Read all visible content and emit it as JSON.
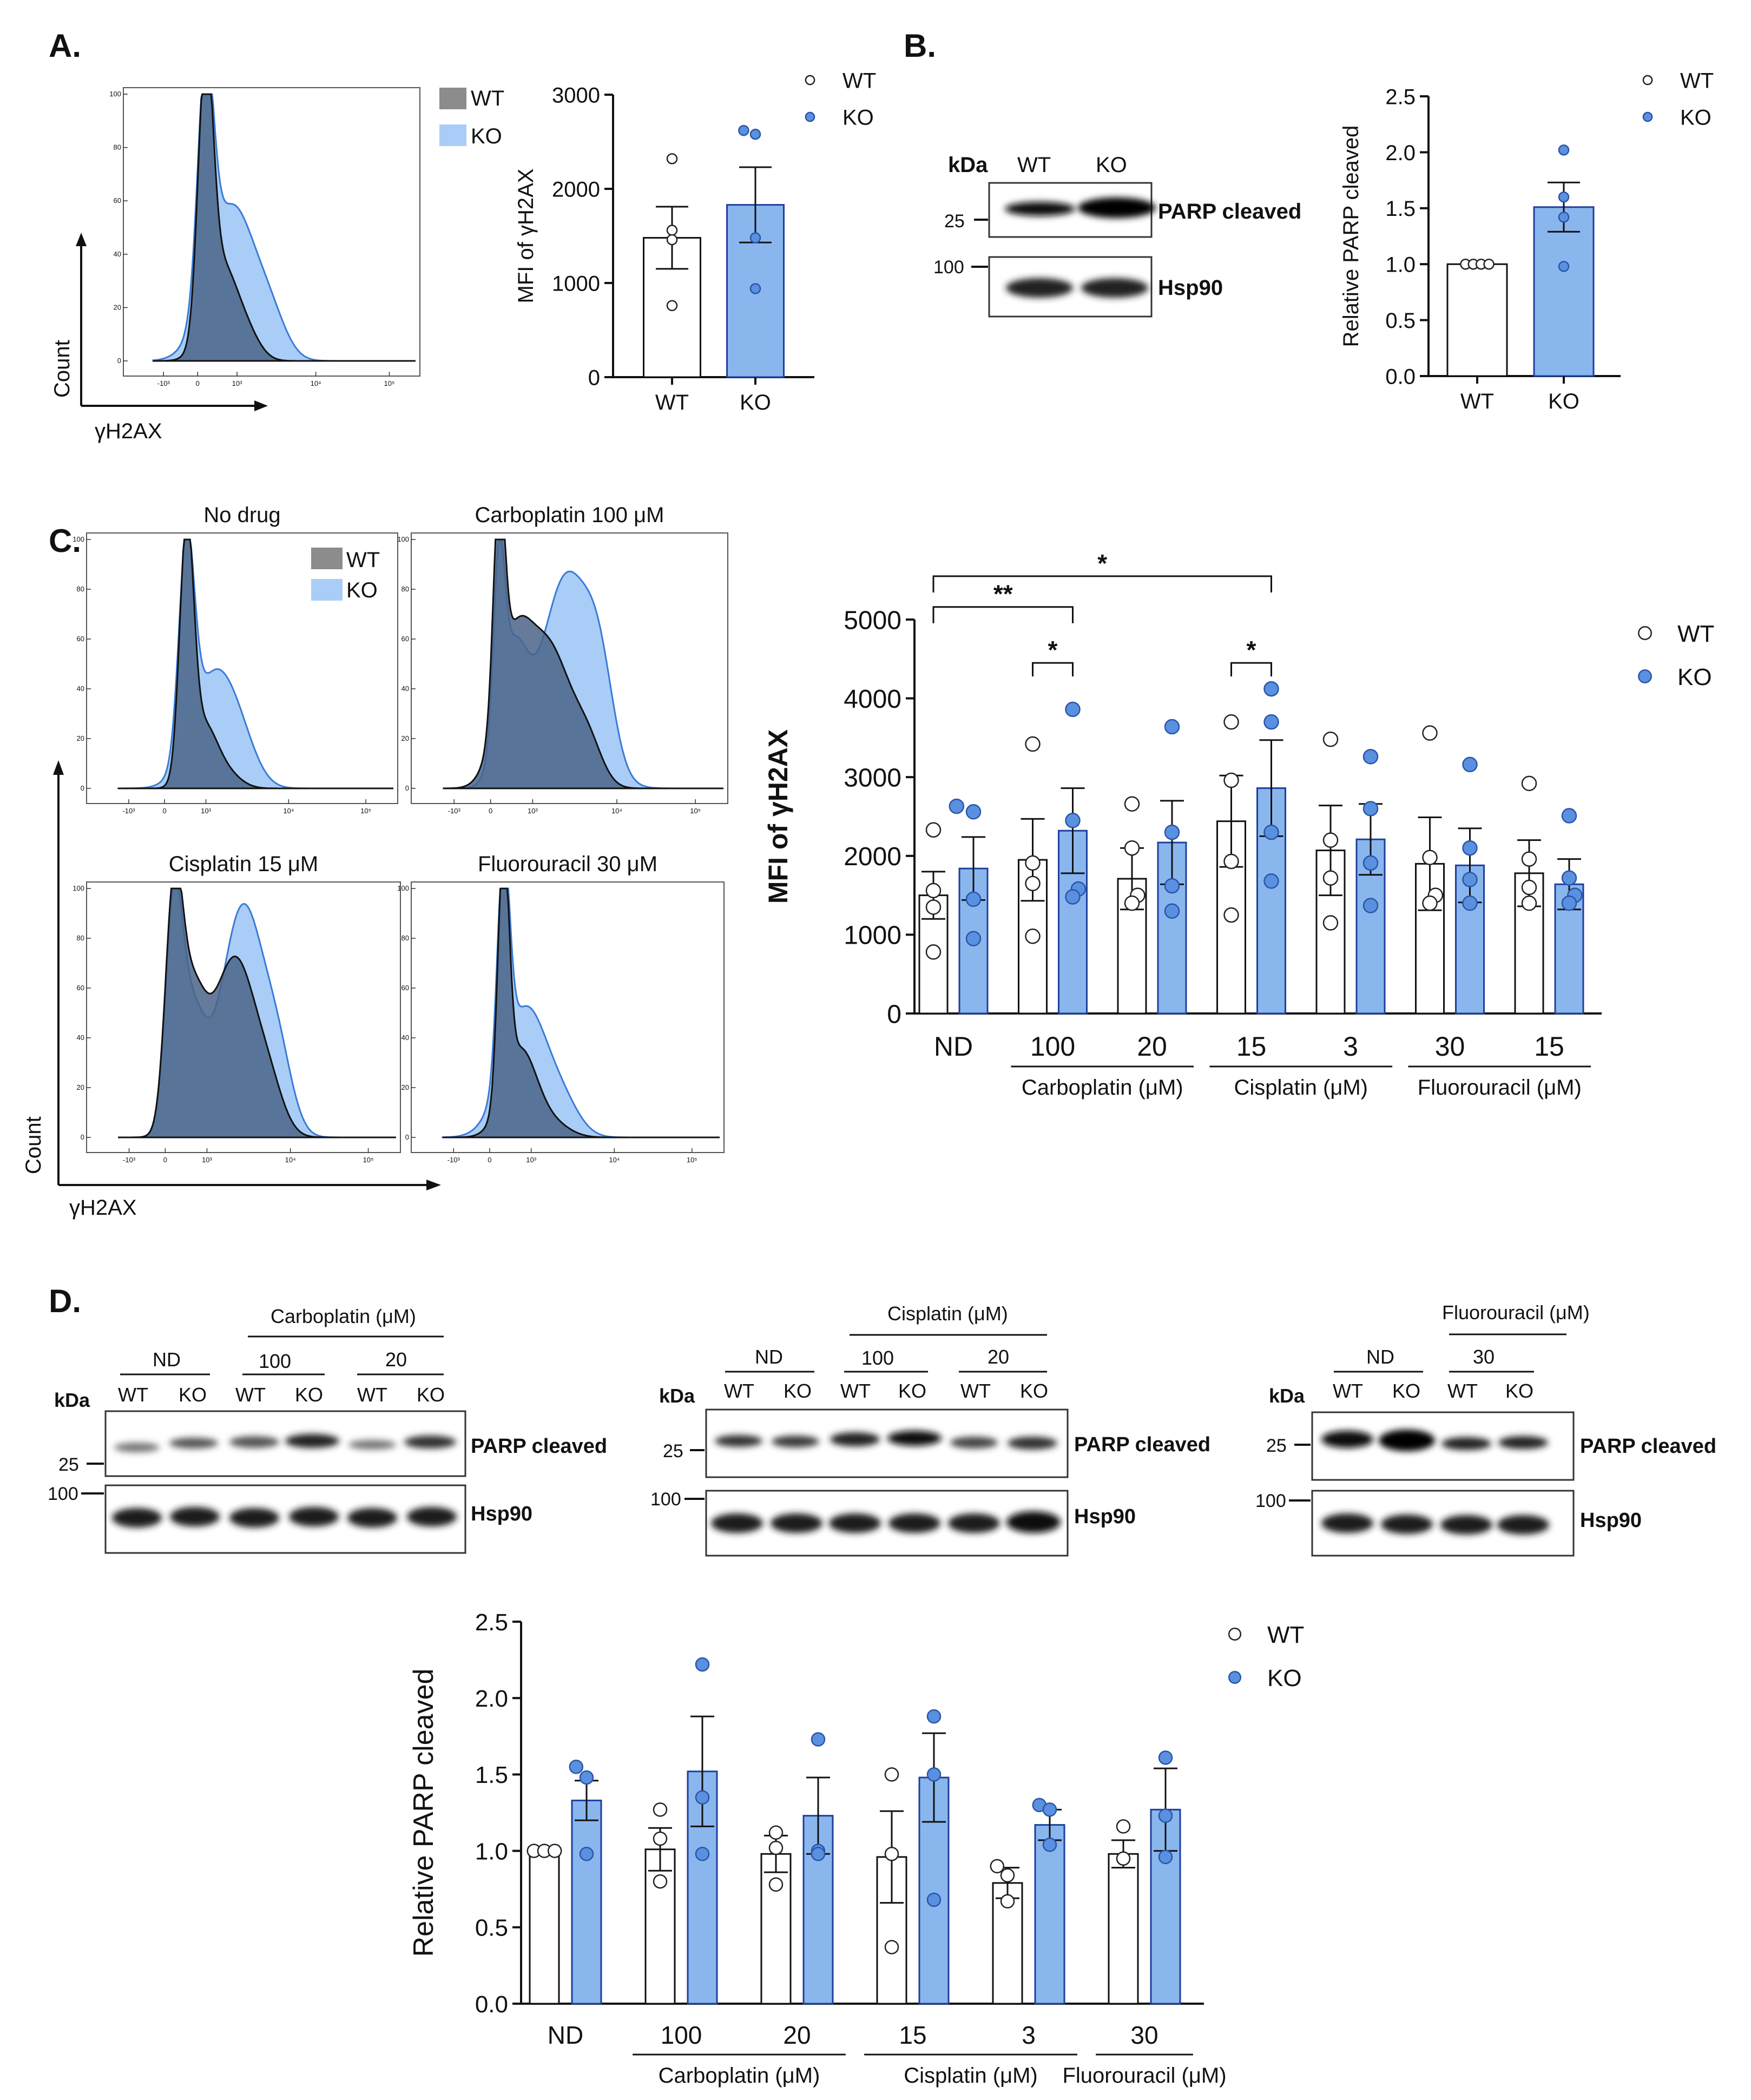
{
  "colors": {
    "wt_fill": "#ffffff",
    "ko_fill": "#8ab6ee",
    "ko_marker": "#5a90e0",
    "ko_bar_edge": "#1f3f9c",
    "wt_hist": "#8c8c8c",
    "ko_hist": "#a9cdf6",
    "overlap": "#4a6487"
  },
  "panel_labels": [
    "A.",
    "B.",
    "C.",
    "D."
  ],
  "hist_common": {
    "ylabel": "Count",
    "xlabel": "γH2AX",
    "y_ticks": [
      "0",
      "20",
      "40",
      "60",
      "80",
      "100"
    ],
    "x_ticks": [
      "-10³",
      "0",
      "10³",
      "10⁴",
      "10⁵"
    ],
    "legend": [
      "WT",
      "KO"
    ]
  },
  "hist_titles": [
    "No drug",
    "Carboplatin 100 μM",
    "Cisplatin 15 μM",
    "Fluorouracil 30 μM"
  ],
  "legend": {
    "wt": "WT",
    "ko": "KO"
  },
  "blots": {
    "kda_label": "kDa",
    "band_cleaved": "PARP cleaved",
    "band_loading": "Hsp90",
    "mw_25": "25",
    "mw_100": "100",
    "lane_wt": "WT",
    "lane_ko": "KO",
    "nd": "ND",
    "carbo": "Carboplatin (μM)",
    "cis": "Cisplatin (μM)",
    "fluoro": "Fluorouracil (μM)",
    "d100": "100",
    "d20": "20",
    "d30": "30"
  },
  "chart_data": [
    {
      "id": "A-bar",
      "type": "bar",
      "title": "",
      "ylabel": "MFI of γH2AX",
      "categories": [
        "WT",
        "KO"
      ],
      "values": [
        1480,
        1830
      ],
      "errors": [
        330,
        400
      ],
      "points": [
        [
          2320,
          1560,
          1460,
          760
        ],
        [
          2620,
          2580,
          1480,
          940
        ]
      ],
      "ylim": [
        0,
        3000
      ],
      "yticks": [
        "0",
        "1000",
        "2000",
        "3000"
      ],
      "legend": [
        "WT",
        "KO"
      ]
    },
    {
      "id": "B-bar",
      "type": "bar",
      "title": "",
      "ylabel": "Relative PARP cleaved",
      "categories": [
        "WT",
        "KO"
      ],
      "values": [
        1.0,
        1.51
      ],
      "errors": [
        0,
        0.22
      ],
      "points": [
        [
          1.0,
          1.0,
          1.0,
          1.0
        ],
        [
          2.02,
          1.6,
          1.42,
          0.98
        ]
      ],
      "ylim": [
        0,
        2.5
      ],
      "yticks": [
        "0.0",
        "0.5",
        "1.0",
        "1.5",
        "2.0",
        "2.5"
      ],
      "legend": [
        "WT",
        "KO"
      ]
    },
    {
      "id": "C-bar",
      "type": "bar",
      "title": "",
      "ylabel": "MFI of γH2AX",
      "categories": [
        "ND",
        "100",
        "20",
        "15",
        "3",
        "30",
        "15"
      ],
      "groups": [
        {
          "label": "Carboplatin  (μM)",
          "from": 1,
          "to": 2
        },
        {
          "label": "Cisplatin  (μM)",
          "from": 3,
          "to": 4
        },
        {
          "label": "Fluorouracil  (μM)",
          "from": 5,
          "to": 6
        }
      ],
      "series": [
        {
          "name": "WT",
          "values": [
            1500,
            1950,
            1710,
            2440,
            2070,
            1900,
            1780
          ],
          "errors": [
            300,
            520,
            390,
            580,
            570,
            590,
            420
          ],
          "points": [
            [
              2330,
              1560,
              1350,
              780
            ],
            [
              3420,
              1910,
              1650,
              980
            ],
            [
              2660,
              2100,
              1500,
              1400
            ],
            [
              3700,
              2960,
              1930,
              1250
            ],
            [
              3480,
              2200,
              1720,
              1150
            ],
            [
              3560,
              1980,
              1500,
              1400
            ],
            [
              2920,
              1960,
              1600,
              1400
            ]
          ]
        },
        {
          "name": "KO",
          "values": [
            1840,
            2320,
            2170,
            2860,
            2210,
            1880,
            1640
          ],
          "errors": [
            400,
            540,
            530,
            610,
            450,
            470,
            320
          ],
          "points": [
            [
              2630,
              2560,
              1450,
              950
            ],
            [
              3860,
              2450,
              1580,
              1480
            ],
            [
              3640,
              2300,
              1620,
              1300
            ],
            [
              4120,
              3700,
              2300,
              1680
            ],
            [
              3260,
              2600,
              1910,
              1370
            ],
            [
              3160,
              2100,
              1700,
              1400
            ],
            [
              2510,
              1720,
              1500,
              1400
            ]
          ]
        }
      ],
      "significance": [
        {
          "label": "**",
          "between": "ND-WT vs 100-KO"
        },
        {
          "label": "*",
          "between": "ND-WT vs 15-KO"
        },
        {
          "label": "*",
          "between": "100-WT vs 100-KO"
        },
        {
          "label": "*",
          "between": "15-WT vs 15-KO"
        }
      ],
      "ylim": [
        0,
        5000
      ],
      "yticks": [
        "0",
        "1000",
        "2000",
        "3000",
        "4000",
        "5000"
      ],
      "legend": [
        "WT",
        "KO"
      ]
    },
    {
      "id": "D-bar",
      "type": "bar",
      "title": "",
      "ylabel": "Relative PARP cleaved",
      "categories": [
        "ND",
        "100",
        "20",
        "15",
        "3",
        "30"
      ],
      "groups": [
        {
          "label": "Carboplatin  (μM)",
          "from": 1,
          "to": 2
        },
        {
          "label": "Cisplatin  (μM)",
          "from": 3,
          "to": 4
        },
        {
          "label": "Fluorouracil  (μM)",
          "from": 5,
          "to": 5
        }
      ],
      "series": [
        {
          "name": "WT",
          "values": [
            1.0,
            1.01,
            0.98,
            0.96,
            0.79,
            0.98
          ],
          "errors": [
            0,
            0.14,
            0.12,
            0.3,
            0.1,
            0.09
          ],
          "points": [
            [
              1.0,
              1.0,
              1.0
            ],
            [
              1.27,
              1.08,
              0.8
            ],
            [
              1.12,
              1.02,
              0.78
            ],
            [
              1.5,
              0.98,
              0.37
            ],
            [
              0.9,
              0.84,
              0.67
            ],
            [
              1.16,
              0.95,
              0.95
            ]
          ]
        },
        {
          "name": "KO",
          "values": [
            1.33,
            1.52,
            1.23,
            1.48,
            1.17,
            1.27
          ],
          "errors": [
            0.13,
            0.36,
            0.25,
            0.29,
            0.1,
            0.27
          ],
          "points": [
            [
              1.55,
              1.48,
              0.98
            ],
            [
              2.22,
              1.35,
              0.98
            ],
            [
              1.73,
              1.0,
              0.98
            ],
            [
              1.88,
              1.5,
              0.68
            ],
            [
              1.3,
              1.27,
              1.04
            ],
            [
              1.61,
              1.23,
              0.96
            ]
          ]
        }
      ],
      "ylim": [
        0,
        2.5
      ],
      "yticks": [
        "0.0",
        "0.5",
        "1.0",
        "1.5",
        "2.0",
        "2.5"
      ],
      "legend": [
        "WT",
        "KO"
      ]
    }
  ]
}
